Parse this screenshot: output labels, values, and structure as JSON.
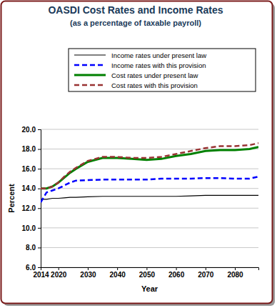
{
  "chart_data": {
    "type": "line",
    "title": "OASDI Cost Rates and Income Rates",
    "subtitle": "(as a percentage of taxable payroll)",
    "x_label": "Year",
    "y_label": "Percent",
    "x": [
      2014,
      2016,
      2018,
      2020,
      2022,
      2024,
      2026,
      2030,
      2035,
      2040,
      2045,
      2050,
      2055,
      2060,
      2065,
      2070,
      2075,
      2080,
      2085,
      2088
    ],
    "series": [
      {
        "name": "Income rates under present law",
        "color": "#000000",
        "line_style": "solid",
        "values": [
          12.9,
          12.9,
          13.0,
          13.0,
          13.05,
          13.1,
          13.1,
          13.15,
          13.2,
          13.2,
          13.2,
          13.2,
          13.2,
          13.2,
          13.25,
          13.3,
          13.3,
          13.3,
          13.3,
          13.3
        ]
      },
      {
        "name": "Income rates with this provision",
        "color": "#0000ff",
        "line_style": "dashed",
        "values": [
          12.6,
          13.6,
          13.8,
          14.0,
          14.3,
          14.6,
          14.8,
          14.85,
          14.9,
          14.9,
          14.9,
          14.9,
          15.0,
          15.0,
          15.0,
          15.05,
          15.05,
          15.0,
          15.0,
          15.2
        ]
      },
      {
        "name": "Cost rates under present law",
        "color": "#008000",
        "line_style": "solid",
        "values": [
          14.0,
          14.0,
          14.2,
          14.6,
          15.1,
          15.6,
          16.0,
          16.7,
          17.1,
          17.1,
          17.0,
          16.9,
          17.0,
          17.3,
          17.5,
          17.8,
          17.9,
          17.9,
          18.0,
          18.2
        ]
      },
      {
        "name": "Cost rates with this provision",
        "color": "#993333",
        "line_style": "dashed",
        "values": [
          14.0,
          14.0,
          14.2,
          14.6,
          15.2,
          15.7,
          16.1,
          16.8,
          17.2,
          17.2,
          17.1,
          17.1,
          17.2,
          17.5,
          17.8,
          18.1,
          18.3,
          18.3,
          18.4,
          18.6
        ]
      }
    ],
    "xlim": [
      2014,
      2088
    ],
    "xticks": [
      2014,
      2020,
      2030,
      2040,
      2050,
      2060,
      2070,
      2080
    ],
    "ylim": [
      6,
      20
    ],
    "yticks": [
      {
        "value": 6,
        "label": "6.0"
      },
      {
        "value": 8,
        "label": "8.0"
      },
      {
        "value": 10,
        "label": "10.0"
      },
      {
        "value": 12,
        "label": "12.0"
      },
      {
        "value": 14,
        "label": "14.0"
      },
      {
        "value": 16,
        "label": "16.0"
      },
      {
        "value": 18,
        "label": "18.0"
      },
      {
        "value": 20,
        "label": "20.0"
      }
    ],
    "grid": true,
    "legend": "top"
  }
}
